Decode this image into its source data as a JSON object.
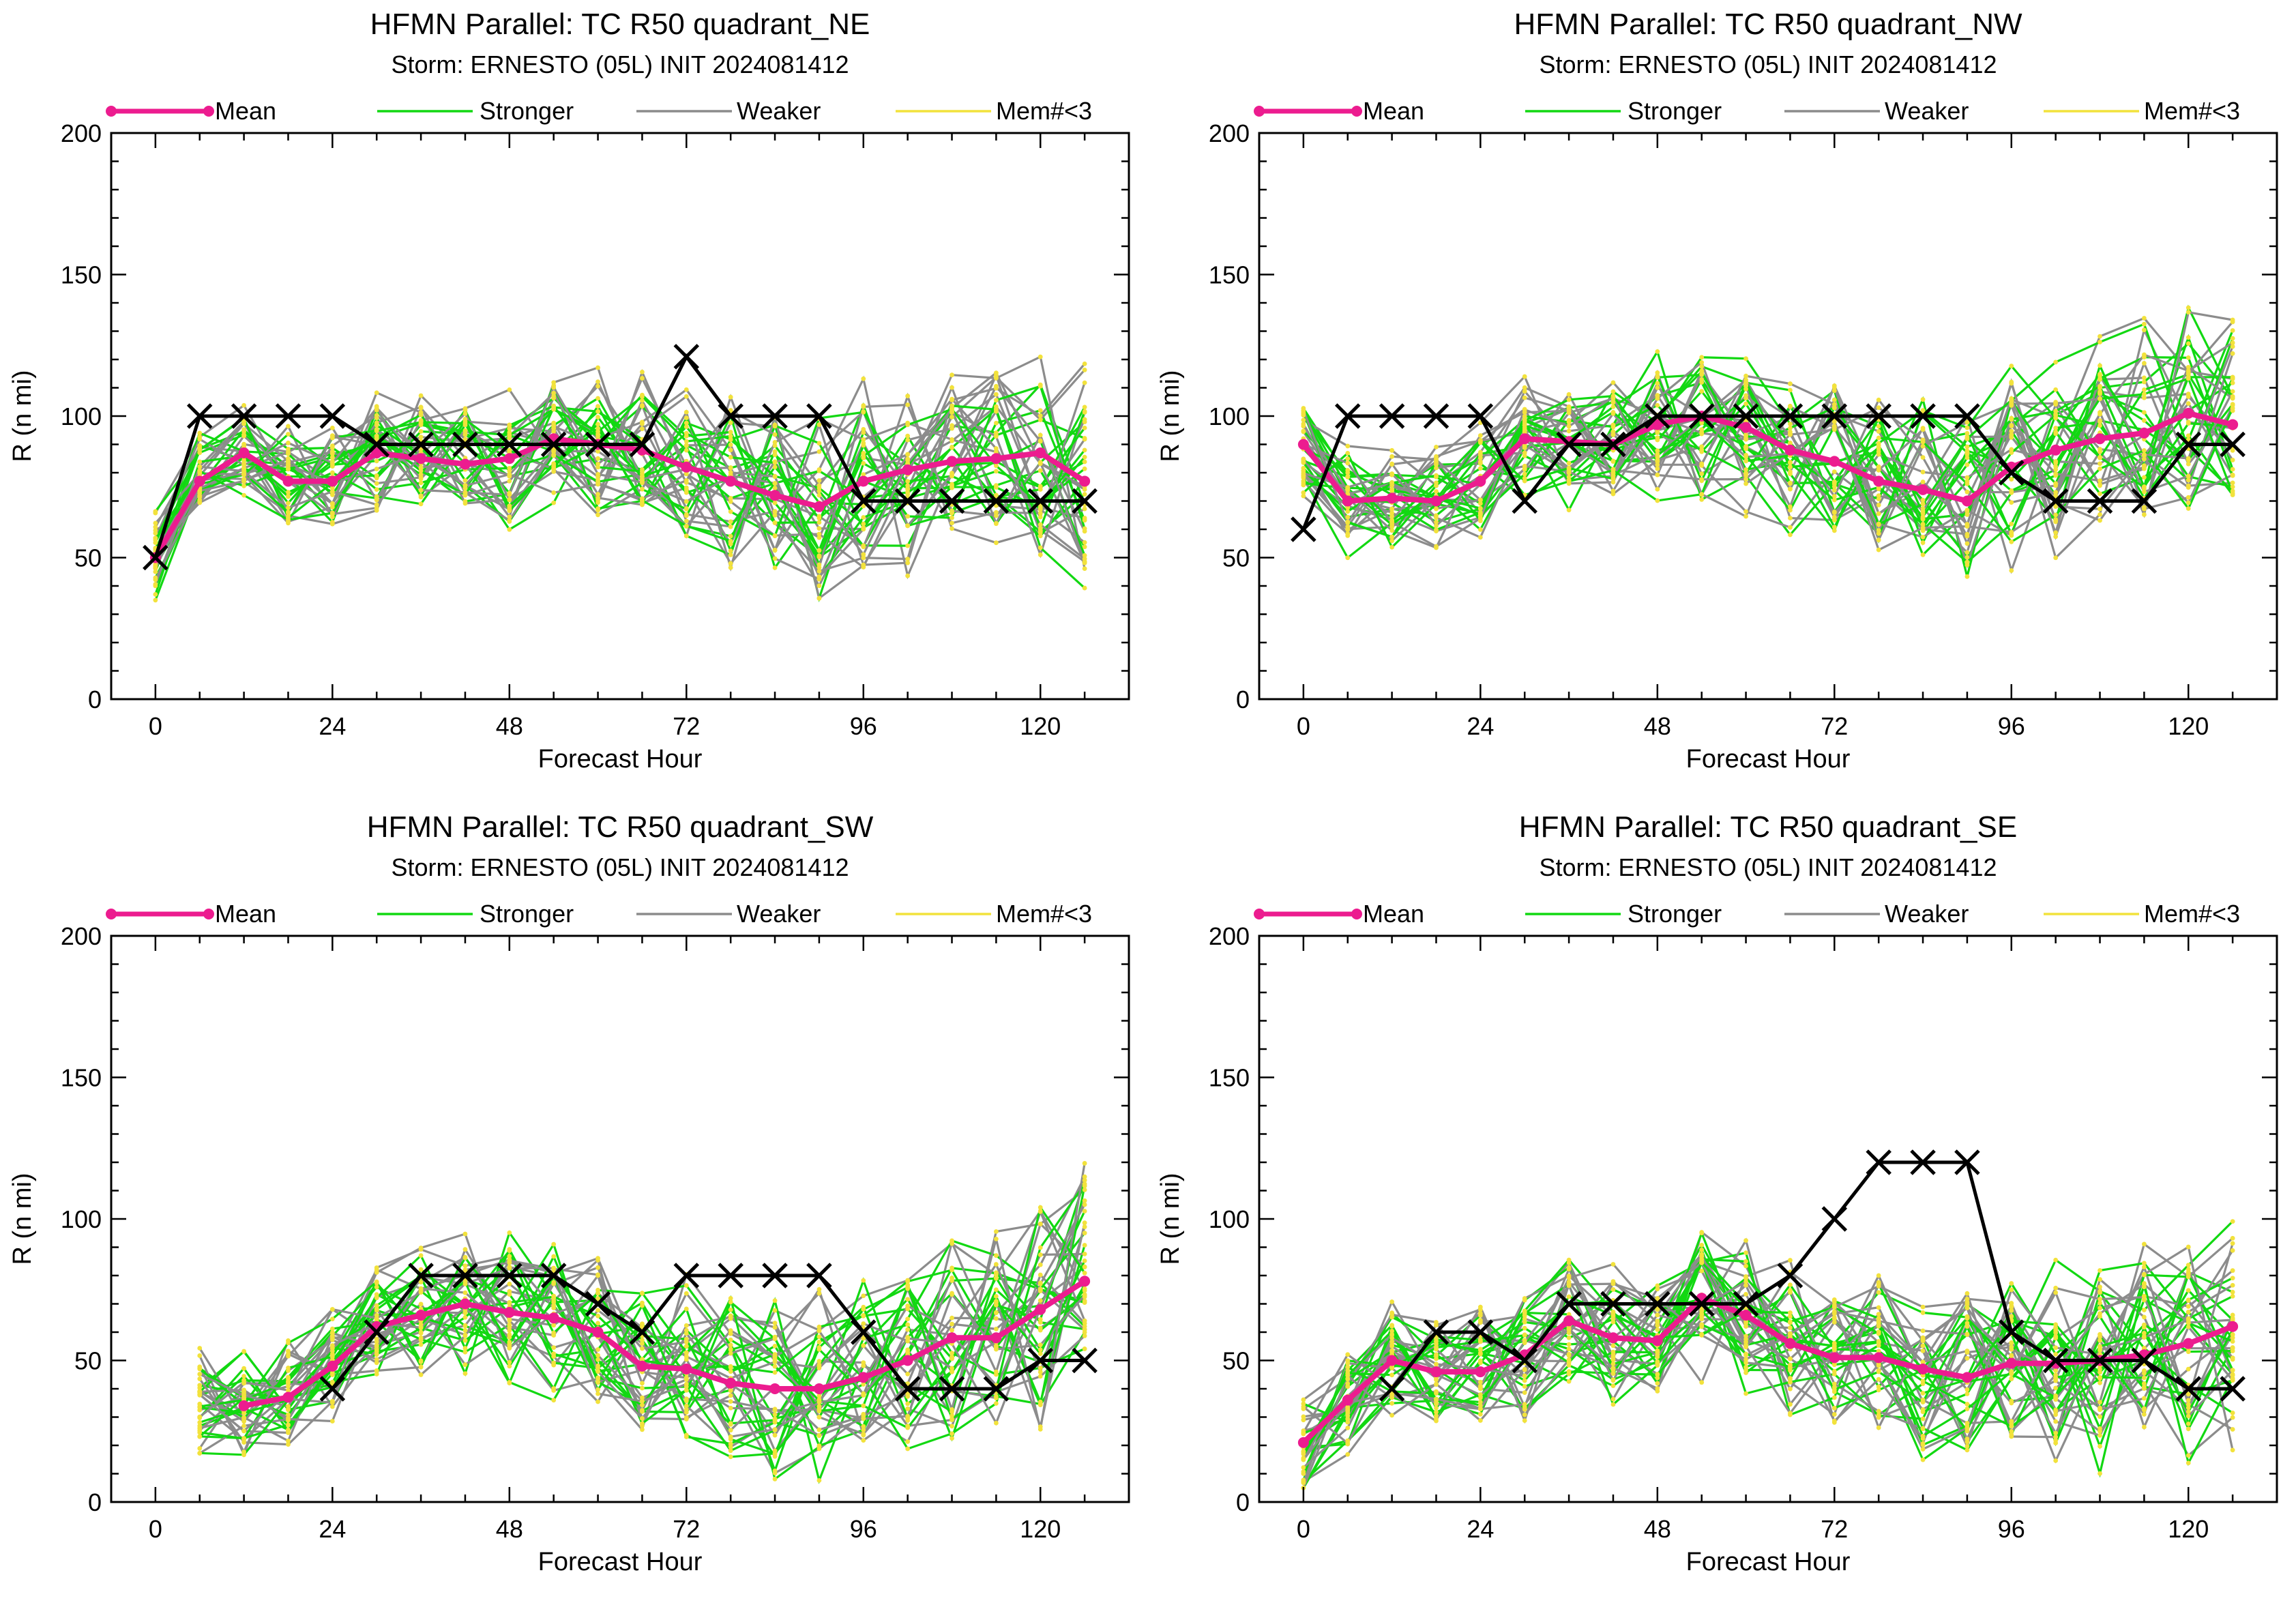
{
  "colors": {
    "mean": "#ec1c8f",
    "stronger": "#12d812",
    "weaker": "#8c8c8c",
    "member_dots": "#f2e23c",
    "observed": "#000000"
  },
  "chart_data": [
    {
      "type": "line",
      "title": "HFMN Parallel: TC  R50 quadrant_NE",
      "subtitle": "Storm: ERNESTO (05L) INIT 2024081412",
      "xlabel": "Forecast Hour",
      "ylabel": "R (n mi)",
      "xlim": [
        -6,
        132
      ],
      "ylim": [
        0,
        200
      ],
      "xticks": [
        0,
        24,
        48,
        72,
        96,
        120
      ],
      "yticks": [
        0,
        50,
        100,
        150,
        200
      ],
      "legend": [
        "Mean",
        "Stronger",
        "Weaker",
        "Mem#<3"
      ],
      "legend_placement": "top",
      "series": [
        {
          "name": "Mean",
          "x": [
            0,
            6,
            12,
            18,
            24,
            30,
            36,
            42,
            48,
            54,
            60,
            66,
            72,
            78,
            84,
            90,
            96,
            102,
            108,
            114,
            120,
            126
          ],
          "values": [
            50,
            77,
            87,
            77,
            77,
            87,
            85,
            83,
            85,
            92,
            90,
            88,
            82,
            77,
            72,
            68,
            77,
            81,
            84,
            85,
            87,
            77
          ]
        },
        {
          "name": "observed",
          "x": [
            0,
            6,
            12,
            18,
            24,
            30,
            36,
            42,
            48,
            54,
            60,
            66,
            72,
            78,
            84,
            90,
            96,
            102,
            108,
            114,
            120,
            126
          ],
          "values": [
            50,
            100,
            100,
            100,
            100,
            90,
            90,
            90,
            90,
            90,
            90,
            90,
            121,
            100,
            100,
            100,
            70,
            70,
            70,
            70,
            70,
            70
          ]
        }
      ]
    },
    {
      "type": "line",
      "title": "HFMN Parallel: TC  R50 quadrant_NW",
      "subtitle": "Storm: ERNESTO (05L) INIT 2024081412",
      "xlabel": "Forecast Hour",
      "ylabel": "R (n mi)",
      "xlim": [
        -6,
        132
      ],
      "ylim": [
        0,
        200
      ],
      "xticks": [
        0,
        24,
        48,
        72,
        96,
        120
      ],
      "yticks": [
        0,
        50,
        100,
        150,
        200
      ],
      "legend": [
        "Mean",
        "Stronger",
        "Weaker",
        "Mem#<3"
      ],
      "legend_placement": "top",
      "series": [
        {
          "name": "Mean",
          "x": [
            0,
            6,
            12,
            18,
            24,
            30,
            36,
            42,
            48,
            54,
            60,
            66,
            72,
            78,
            84,
            90,
            96,
            102,
            108,
            114,
            120,
            126
          ],
          "values": [
            90,
            70,
            71,
            70,
            77,
            92,
            91,
            90,
            97,
            100,
            96,
            88,
            84,
            77,
            74,
            70,
            82,
            88,
            92,
            94,
            101,
            97
          ]
        },
        {
          "name": "observed",
          "x": [
            0,
            6,
            12,
            18,
            24,
            30,
            36,
            42,
            48,
            54,
            60,
            66,
            72,
            78,
            84,
            90,
            96,
            102,
            108,
            114,
            120,
            126
          ],
          "values": [
            60,
            100,
            100,
            100,
            100,
            70,
            90,
            90,
            100,
            100,
            100,
            100,
            100,
            100,
            100,
            100,
            80,
            70,
            70,
            70,
            90,
            90
          ]
        }
      ]
    },
    {
      "type": "line",
      "title": "HFMN Parallel: TC  R50 quadrant_SW",
      "subtitle": "Storm: ERNESTO (05L) INIT 2024081412",
      "xlabel": "Forecast Hour",
      "ylabel": "R (n mi)",
      "xlim": [
        -6,
        132
      ],
      "ylim": [
        0,
        200
      ],
      "xticks": [
        0,
        24,
        48,
        72,
        96,
        120
      ],
      "yticks": [
        0,
        50,
        100,
        150,
        200
      ],
      "legend": [
        "Mean",
        "Stronger",
        "Weaker",
        "Mem#<3"
      ],
      "legend_placement": "top",
      "series": [
        {
          "name": "Mean",
          "x": [
            12,
            18,
            24,
            30,
            36,
            42,
            48,
            54,
            60,
            66,
            72,
            78,
            84,
            90,
            96,
            102,
            108,
            114,
            120,
            126
          ],
          "values": [
            34,
            37,
            48,
            62,
            66,
            70,
            67,
            65,
            60,
            48,
            47,
            42,
            40,
            40,
            44,
            50,
            58,
            58,
            68,
            78
          ]
        },
        {
          "name": "observed",
          "x": [
            24,
            30,
            36,
            42,
            48,
            54,
            60,
            66,
            72,
            78,
            84,
            90,
            96,
            102,
            108,
            114,
            120,
            126
          ],
          "values": [
            40,
            60,
            80,
            80,
            80,
            80,
            70,
            60,
            80,
            80,
            80,
            80,
            60,
            40,
            40,
            40,
            50,
            50
          ]
        }
      ]
    },
    {
      "type": "line",
      "title": "HFMN Parallel: TC  R50 quadrant_SE",
      "subtitle": "Storm: ERNESTO (05L) INIT 2024081412",
      "xlabel": "Forecast Hour",
      "ylabel": "R (n mi)",
      "xlim": [
        -6,
        132
      ],
      "ylim": [
        0,
        200
      ],
      "xticks": [
        0,
        24,
        48,
        72,
        96,
        120
      ],
      "yticks": [
        0,
        50,
        100,
        150,
        200
      ],
      "legend": [
        "Mean",
        "Stronger",
        "Weaker",
        "Mem#<3"
      ],
      "legend_placement": "top",
      "series": [
        {
          "name": "Mean",
          "x": [
            0,
            6,
            12,
            18,
            24,
            30,
            36,
            42,
            48,
            54,
            60,
            66,
            72,
            78,
            84,
            90,
            96,
            102,
            108,
            114,
            120,
            126
          ],
          "values": [
            21,
            36,
            50,
            46,
            46,
            52,
            64,
            58,
            57,
            72,
            66,
            56,
            51,
            51,
            47,
            44,
            49,
            49,
            50,
            52,
            56,
            62
          ]
        },
        {
          "name": "observed",
          "x": [
            12,
            18,
            24,
            30,
            36,
            42,
            48,
            54,
            60,
            66,
            72,
            78,
            84,
            90,
            96,
            102,
            108,
            114,
            120,
            126
          ],
          "values": [
            40,
            60,
            60,
            50,
            70,
            70,
            70,
            70,
            70,
            80,
            100,
            120,
            120,
            120,
            60,
            50,
            50,
            50,
            40,
            40
          ]
        }
      ]
    }
  ]
}
